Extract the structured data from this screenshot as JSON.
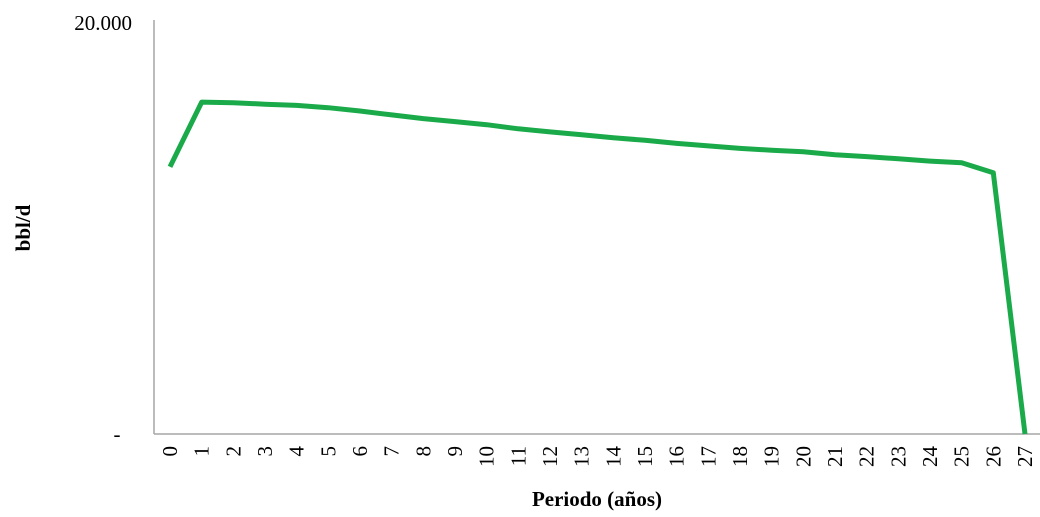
{
  "chart_data": {
    "type": "line",
    "title": "",
    "xlabel": "Periodo (años)",
    "ylabel": "bbl/d",
    "x": [
      0,
      1,
      2,
      3,
      4,
      5,
      6,
      7,
      8,
      9,
      10,
      11,
      12,
      13,
      14,
      15,
      16,
      17,
      18,
      19,
      20,
      21,
      22,
      23,
      24,
      25,
      26,
      27
    ],
    "x_tick_labels": [
      "0",
      "1",
      "2",
      "3",
      "4",
      "5",
      "6",
      "7",
      "8",
      "9",
      "10",
      "11",
      "12",
      "13",
      "14",
      "15",
      "16",
      "17",
      "18",
      "19",
      "20",
      "21",
      "22",
      "23",
      "24",
      "25",
      "26",
      "27"
    ],
    "series": [
      {
        "color": "#1aaa4a",
        "values": [
          13000,
          16150,
          16120,
          16050,
          15990,
          15880,
          15720,
          15530,
          15350,
          15200,
          15050,
          14850,
          14700,
          14560,
          14420,
          14290,
          14140,
          14020,
          13900,
          13810,
          13730,
          13590,
          13500,
          13390,
          13280,
          13200,
          12710,
          0
        ]
      }
    ],
    "ylim": [
      0,
      20000
    ],
    "y_tick_labels": [
      {
        "value": 20000,
        "label": "20.000"
      },
      {
        "value": 0,
        "label": "-"
      }
    ],
    "grid": false,
    "legend": "none"
  }
}
